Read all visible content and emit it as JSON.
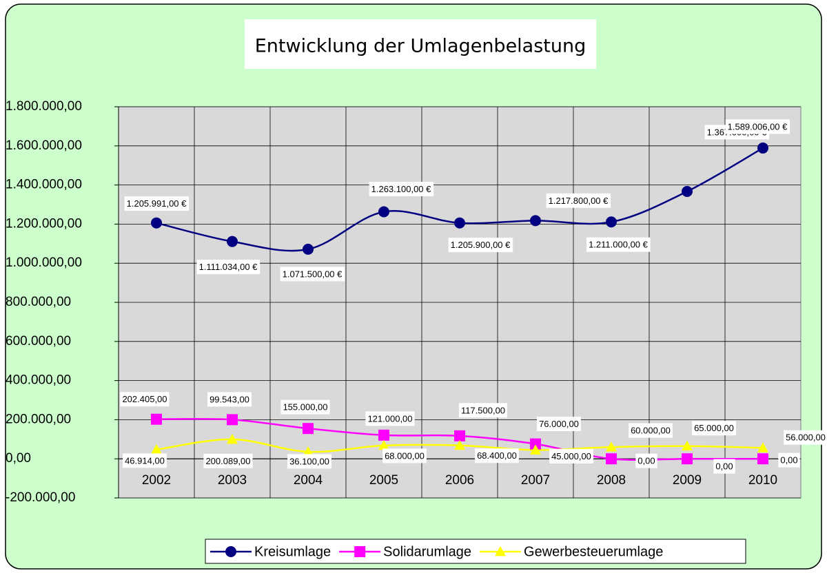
{
  "chart_data": {
    "type": "line",
    "title": "Entwicklung der Umlagenbelastung",
    "categories": [
      "2002",
      "2003",
      "2004",
      "2005",
      "2006",
      "2007",
      "2008",
      "2009",
      "2010"
    ],
    "ylim": [
      -200000,
      1800000
    ],
    "yticks": [
      {
        "value": -200000,
        "label": "-200.000,00"
      },
      {
        "value": 0,
        "label": "0,00"
      },
      {
        "value": 200000,
        "label": "200.000,00"
      },
      {
        "value": 400000,
        "label": "400.000,00"
      },
      {
        "value": 600000,
        "label": "600.000,00"
      },
      {
        "value": 800000,
        "label": "800.000,00"
      },
      {
        "value": 1000000,
        "label": "1.000.000,00"
      },
      {
        "value": 1200000,
        "label": "1.200.000,00"
      },
      {
        "value": 1400000,
        "label": "1.400.000,00"
      },
      {
        "value": 1600000,
        "label": "1.600.000,00"
      },
      {
        "value": 1800000,
        "label": "1.800.000,00"
      }
    ],
    "grid": true,
    "legend": "bottom",
    "series": [
      {
        "name": "Kreisumlage",
        "color": "#000080",
        "marker": "circle",
        "values": [
          1205991,
          1111034,
          1071500,
          1263100,
          1205900,
          1217800,
          1211000,
          1367000,
          1589006
        ],
        "value_labels": [
          "1.205.991,00 €",
          "1.111.034,00 €",
          "1.071.500,00 €",
          "1.263.100,00 €",
          "1.205.900,00 €",
          "1.217.800,00 €",
          "1.211.000,00 €",
          "1.367.000,00 €",
          "1.589.006,00 €"
        ]
      },
      {
        "name": "Solidarumlage",
        "color": "#ff00ff",
        "marker": "square",
        "values": [
          202405,
          200089,
          155000,
          121000,
          117500,
          76000,
          0,
          0,
          0
        ],
        "value_labels": [
          "202.405,00",
          "200.089,00",
          "155.000,00",
          "121.000,00",
          "117.500,00",
          "76.000,00",
          "0,00",
          "0,00",
          "0,00"
        ]
      },
      {
        "name": "Gewerbesteuerumlage",
        "color": "#ffff00",
        "marker": "triangle",
        "values": [
          46914,
          99543,
          36100,
          68000,
          68400,
          45000,
          60000,
          65000,
          56000
        ],
        "value_labels": [
          "46.914,00",
          "99.543,00",
          "36.100,00",
          "68.000,00",
          "68.400,00",
          "45.000,00",
          "60.000,00",
          "65.000,00",
          "56.000,00"
        ]
      }
    ]
  }
}
